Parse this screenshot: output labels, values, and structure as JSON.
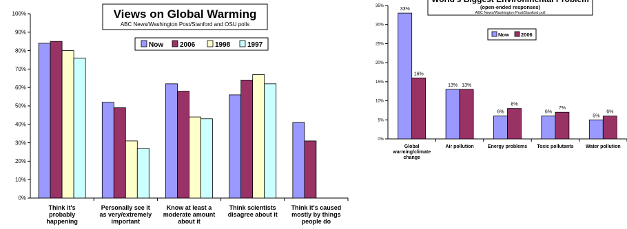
{
  "chart_data": [
    {
      "type": "bar",
      "title": "Views on Global Warming",
      "subtitle": "ABC News/Washington Post/Stanford and OSU polls",
      "categories": [
        [
          "Think it's",
          "probably",
          "happening"
        ],
        [
          "Personally see it",
          "as very/extremely",
          "important"
        ],
        [
          "Know at least a",
          "moderate amount",
          "about it"
        ],
        [
          "Think scientists",
          "disagree about it"
        ],
        [
          "Think it's caused",
          "mostly by things",
          "people do"
        ]
      ],
      "series": [
        {
          "name": "Now",
          "color": "#9999ff",
          "values": [
            84,
            52,
            62,
            56,
            41
          ]
        },
        {
          "name": "2006",
          "color": "#993366",
          "values": [
            85,
            49,
            58,
            64,
            31
          ]
        },
        {
          "name": "1998",
          "color": "#ffffcc",
          "values": [
            80,
            31,
            44,
            67,
            null
          ]
        },
        {
          "name": "1997",
          "color": "#ccffff",
          "values": [
            76,
            27,
            43,
            62,
            null
          ]
        }
      ],
      "ylim": [
        0,
        100
      ],
      "yticks": [
        "0%",
        "10%",
        "20%",
        "30%",
        "40%",
        "50%",
        "60%",
        "70%",
        "80%",
        "90%",
        "100%"
      ],
      "legend_position": "top-right",
      "grid": false
    },
    {
      "type": "bar",
      "title": "World's Biggest Environmental Problem",
      "subtitle": "(open-ended responses)",
      "source": "ABC News/Washington Post/Stanford poll",
      "categories": [
        [
          "Global",
          "warming/climate",
          "change"
        ],
        [
          "Air pollution"
        ],
        [
          "Energy problems"
        ],
        [
          "Toxic pollutants"
        ],
        [
          "Water pollution"
        ]
      ],
      "series": [
        {
          "name": "Now",
          "color": "#9999ff",
          "values": [
            33,
            13,
            6,
            6,
            5
          ],
          "labels": [
            "33%",
            "13%",
            "6%",
            "6%",
            "5%"
          ]
        },
        {
          "name": "2006",
          "color": "#993366",
          "values": [
            16,
            13,
            8,
            7,
            6
          ],
          "labels": [
            "16%",
            "13%",
            "8%",
            "7%",
            "6%"
          ]
        }
      ],
      "ylim": [
        0,
        35
      ],
      "yticks": [
        "0%",
        "5%",
        "10%",
        "15%",
        "20%",
        "25%",
        "30%",
        "35%"
      ],
      "legend_position": "top-center",
      "grid": false
    }
  ]
}
